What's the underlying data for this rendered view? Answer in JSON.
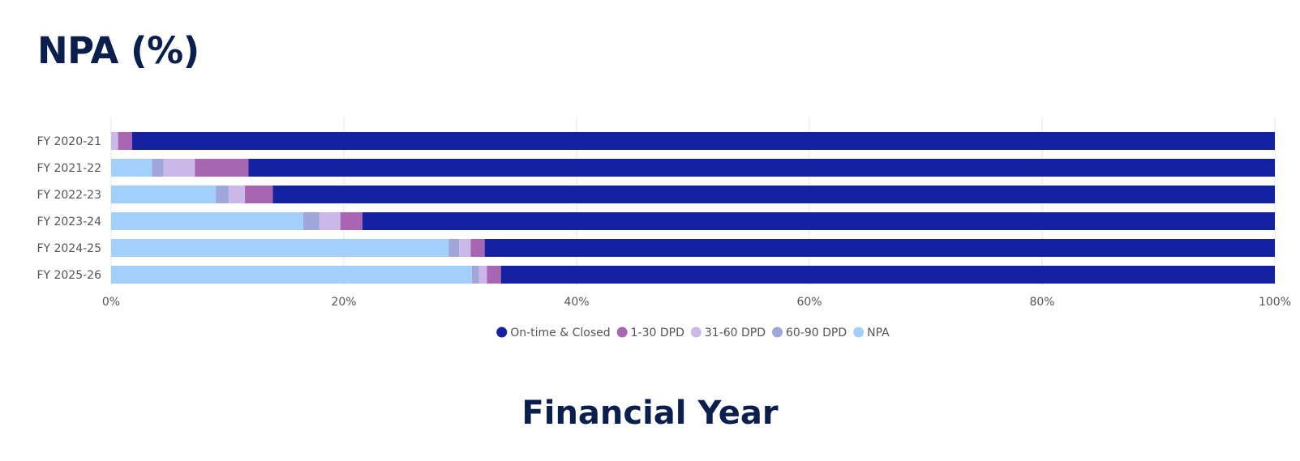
{
  "page": {
    "title": "NPA (%)"
  },
  "chart_data": {
    "type": "bar",
    "orientation": "horizontal",
    "stacked": true,
    "normalized_percent": true,
    "title": "NPA (%)",
    "xlabel": "Financial Year",
    "ylabel": "",
    "xlim": [
      0,
      100
    ],
    "x_ticks": [
      "0%",
      "20%",
      "40%",
      "60%",
      "80%",
      "100%"
    ],
    "grid": true,
    "legend_position": "bottom",
    "categories": [
      "FY 2020-21",
      "FY 2021-22",
      "FY 2022-23",
      "FY 2023-24",
      "FY 2024-25",
      "FY 2025-26"
    ],
    "series": [
      {
        "name": "NPA",
        "color": "#a3d0fb",
        "values": [
          0,
          3.5,
          9.0,
          16.5,
          29.0,
          31.0
        ]
      },
      {
        "name": "60-90 DPD",
        "color": "#a1a6da",
        "values": [
          0,
          1.0,
          1.1,
          1.4,
          0.9,
          0.6
        ]
      },
      {
        "name": "31-60 DPD",
        "color": "#c9b8e8",
        "values": [
          0.6,
          2.7,
          1.4,
          1.8,
          1.0,
          0.7
        ]
      },
      {
        "name": "1-30 DPD",
        "color": "#a866b2",
        "values": [
          1.2,
          4.6,
          2.4,
          1.9,
          1.2,
          1.2
        ]
      },
      {
        "name": "On-time & Closed",
        "color": "#1421a0",
        "values": [
          98.2,
          88.2,
          86.1,
          78.4,
          67.9,
          66.5
        ]
      }
    ],
    "legend_order": [
      "On-time & Closed",
      "1-30 DPD",
      "31-60 DPD",
      "60-90 DPD",
      "NPA"
    ]
  }
}
